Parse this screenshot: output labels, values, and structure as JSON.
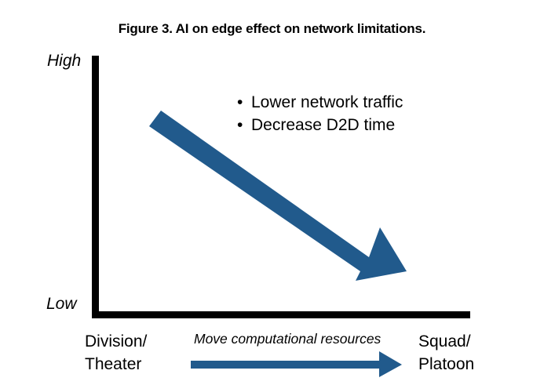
{
  "title": "Figure 3. AI on edge effect on network limitations.",
  "y_axis": {
    "high_label": "High",
    "low_label": "Low"
  },
  "x_axis": {
    "left_label_line1": "Division/",
    "left_label_line2": "Theater",
    "right_label_line1": "Squad/",
    "right_label_line2": "Platoon",
    "arrow_caption": "Move computational resources"
  },
  "bullets": [
    "Lower network traffic",
    "Decrease D2D time"
  ],
  "colors": {
    "arrow": "#215a8c",
    "axis": "#000000",
    "title": "#000000"
  }
}
